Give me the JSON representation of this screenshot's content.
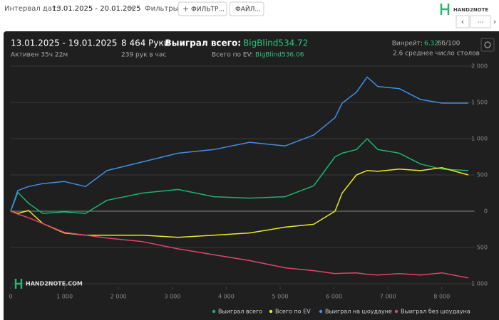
{
  "toolbar": {
    "date_label": "Интервал дат:",
    "date_range": "13.01.2025 - 20.01.2025",
    "filters_label": "Фильтры:",
    "filter_button": "ФИЛЬТР...",
    "file_button": "ФАЙЛ...",
    "logo": "HAND2NOTE",
    "more_button": "..."
  },
  "summary": {
    "period": "13.01.2025 - 19.01.2025",
    "active": "Активен 35ч 22м",
    "hands": "8 464 Руки",
    "hands_per_hour": "239 рук в час",
    "won_label": "Выиграл всего:",
    "won_value": "BigBlind534.72",
    "ev_label": "Всего по EV:",
    "ev_value": "BigBlind536.06",
    "winrate_label": "Винрейт:",
    "winrate_value": "6.32",
    "winrate_unit": "бб/100",
    "tables": "2.6 среднее число столов"
  },
  "chart_data": {
    "type": "line",
    "watermark": "HAND2NOTE.COM",
    "x": [
      0,
      132,
      331,
      595,
      992,
      1389,
      1786,
      2447,
      3108,
      3770,
      4431,
      5093,
      5622,
      6019,
      6151,
      6415,
      6614,
      6812,
      7209,
      7606,
      8003,
      8492
    ],
    "series": [
      {
        "name": "Выиграл всего",
        "color": "#1db36e",
        "values": [
          0,
          260,
          110,
          -30,
          -10,
          -30,
          150,
          250,
          300,
          200,
          180,
          200,
          350,
          750,
          800,
          850,
          1000,
          850,
          800,
          650,
          580,
          560
        ]
      },
      {
        "name": "Всего по EV",
        "color": "#e8e82a",
        "values": [
          0,
          -30,
          10,
          -170,
          -300,
          -330,
          -330,
          -330,
          -360,
          -330,
          -300,
          -220,
          -180,
          0,
          250,
          500,
          560,
          550,
          580,
          560,
          600,
          500
        ]
      },
      {
        "name": "Выиграл на шоудауне",
        "color": "#3f8ee8",
        "values": [
          0,
          285,
          340,
          380,
          410,
          340,
          560,
          680,
          800,
          850,
          950,
          900,
          1050,
          1290,
          1490,
          1640,
          1850,
          1720,
          1690,
          1540,
          1490,
          1490
        ]
      },
      {
        "name": "Выиграл без шоудауна",
        "color": "#e0446a",
        "values": [
          0,
          -40,
          -90,
          -170,
          -290,
          -330,
          -370,
          -420,
          -520,
          -600,
          -680,
          -780,
          -820,
          -860,
          -855,
          -850,
          -870,
          -880,
          -860,
          -880,
          -850,
          -920
        ]
      }
    ],
    "xlim": [
      0,
      8500
    ],
    "xticks": [
      0,
      {
        "value": 1000,
        "label": "1 000"
      },
      {
        "value": 2000,
        "label": "2 000"
      },
      {
        "value": 3000,
        "label": "3 000"
      },
      {
        "value": 4000,
        "label": "4 000"
      },
      {
        "value": 5000,
        "label": "5 000"
      },
      {
        "value": 6000,
        "label": "6 000"
      },
      {
        "value": 7000,
        "label": "7 000"
      },
      {
        "value": 8000,
        "label": "8 000"
      }
    ],
    "ylim": [
      -1000,
      2000
    ],
    "yticks": [
      {
        "value": -1000,
        "label": "1 000"
      },
      {
        "value": -500,
        "label": "500"
      },
      0,
      500,
      {
        "value": 1000,
        "label": "1 000"
      },
      {
        "value": 1500,
        "label": "1 500"
      },
      {
        "value": 2000,
        "label": "2 000"
      }
    ],
    "grid": true
  }
}
